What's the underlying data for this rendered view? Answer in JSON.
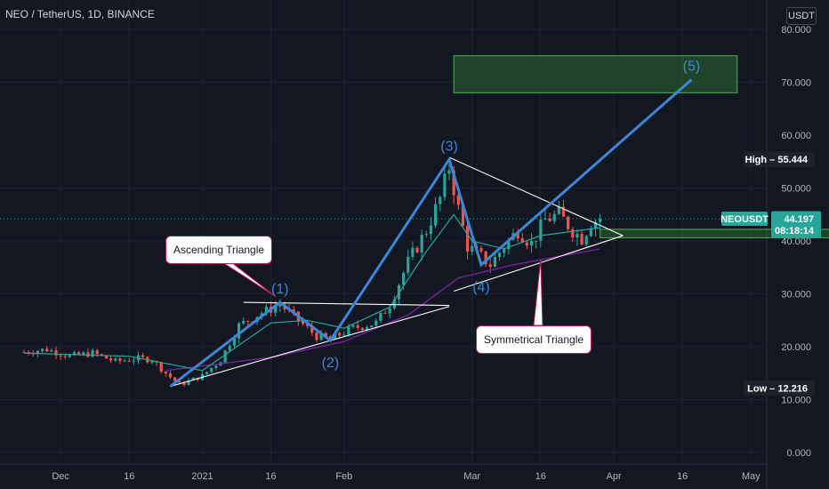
{
  "symbol_title": "NEO / TetherUS, 1D, BINANCE",
  "currency": "USDT",
  "colors": {
    "background": "#131722",
    "grid": "#1e2230",
    "up": "#26a69a",
    "down": "#ef5350",
    "wave": "#3d86d6",
    "ema_fast": "#26a69a",
    "ema_slow": "#7b1fa2",
    "zone_border": "#4caf50",
    "zone_fill": "#2e7d32",
    "high_label": "#1e222d",
    "last_price_label": "#26a69a",
    "callout_border": "#c2185b"
  },
  "chart_data": {
    "type": "candlestick",
    "ylim": [
      0,
      84
    ],
    "y_ticks": [
      0,
      10,
      20,
      30,
      40,
      50,
      60,
      70,
      80
    ],
    "y_tick_labels": [
      "0.000",
      "10.000",
      "20.000",
      "30.000",
      "40.000",
      "50.000",
      "60.000",
      "70.000",
      "80.000"
    ],
    "x_range": [
      "2020-11-23",
      "2021-05-25"
    ],
    "x_ticks": [
      {
        "date": "2020-12-01",
        "label": "Dec"
      },
      {
        "date": "2020-12-16",
        "label": "16"
      },
      {
        "date": "2021-01-01",
        "label": "2021"
      },
      {
        "date": "2021-01-16",
        "label": "16"
      },
      {
        "date": "2021-02-01",
        "label": "Feb"
      },
      {
        "date": "2021-03-01",
        "label": "Mar"
      },
      {
        "date": "2021-03-16",
        "label": "16"
      },
      {
        "date": "2021-04-01",
        "label": "Apr"
      },
      {
        "date": "2021-04-16",
        "label": "16"
      },
      {
        "date": "2021-05-01",
        "label": "May"
      }
    ],
    "grid": true,
    "price_path": [
      [
        "2020-11-23",
        19.0
      ],
      [
        "2020-11-28",
        19.5
      ],
      [
        "2020-12-03",
        18.2
      ],
      [
        "2020-12-08",
        18.8
      ],
      [
        "2020-12-13",
        17.2
      ],
      [
        "2020-12-18",
        17.8
      ],
      [
        "2020-12-21",
        17.6
      ],
      [
        "2020-12-24",
        15.0
      ],
      [
        "2020-12-27",
        12.8
      ],
      [
        "2021-01-01",
        14.5
      ],
      [
        "2021-01-05",
        17.5
      ],
      [
        "2021-01-09",
        24.0
      ],
      [
        "2021-01-13",
        26.0
      ],
      [
        "2021-01-18",
        28.0
      ],
      [
        "2021-01-22",
        25.0
      ],
      [
        "2021-01-26",
        22.0
      ],
      [
        "2021-01-29",
        21.5
      ],
      [
        "2021-02-03",
        23.5
      ],
      [
        "2021-02-08",
        24.5
      ],
      [
        "2021-02-11",
        28.0
      ],
      [
        "2021-02-15",
        36.0
      ],
      [
        "2021-02-19",
        42.0
      ],
      [
        "2021-02-22",
        48.0
      ],
      [
        "2021-02-24",
        54.0
      ],
      [
        "2021-02-26",
        46.0
      ],
      [
        "2021-02-28",
        39.0
      ],
      [
        "2021-03-03",
        37.0
      ],
      [
        "2021-03-05",
        35.5
      ],
      [
        "2021-03-08",
        39.0
      ],
      [
        "2021-03-11",
        42.0
      ],
      [
        "2021-03-14",
        39.5
      ],
      [
        "2021-03-17",
        44.0
      ],
      [
        "2021-03-20",
        45.0
      ],
      [
        "2021-03-23",
        42.0
      ],
      [
        "2021-03-25",
        40.5
      ],
      [
        "2021-03-27",
        43.5
      ],
      [
        "2021-03-29",
        44.197
      ]
    ],
    "ema_fast": [
      [
        "2020-11-23",
        18.8
      ],
      [
        "2020-12-16",
        18.2
      ],
      [
        "2021-01-01",
        15.5
      ],
      [
        "2021-01-16",
        24.5
      ],
      [
        "2021-01-24",
        25.0
      ],
      [
        "2021-02-01",
        23.5
      ],
      [
        "2021-02-11",
        27.5
      ],
      [
        "2021-02-19",
        38.0
      ],
      [
        "2021-02-25",
        45.0
      ],
      [
        "2021-03-01",
        40.0
      ],
      [
        "2021-03-08",
        38.5
      ],
      [
        "2021-03-16",
        41.0
      ],
      [
        "2021-03-29",
        42.5
      ]
    ],
    "ema_slow": [
      [
        "2020-12-24",
        15.5
      ],
      [
        "2021-01-16",
        18.0
      ],
      [
        "2021-02-01",
        21.0
      ],
      [
        "2021-02-15",
        26.0
      ],
      [
        "2021-02-26",
        33.0
      ],
      [
        "2021-03-10",
        35.5
      ],
      [
        "2021-03-29",
        38.5
      ]
    ],
    "wave_count": [
      {
        "date": "2020-12-25",
        "value": 12.5,
        "label": ""
      },
      {
        "date": "2021-01-18",
        "value": 28.4,
        "label": "(1)",
        "label_pos": "above"
      },
      {
        "date": "2021-01-29",
        "value": 21.2,
        "label": "(2)",
        "label_pos": "below"
      },
      {
        "date": "2021-02-24",
        "value": 55.4,
        "label": "(3)",
        "label_pos": "above"
      },
      {
        "date": "2021-03-03",
        "value": 35.5,
        "label": "(4)",
        "label_pos": "below"
      },
      {
        "date": "2021-04-18",
        "value": 70.5,
        "label": "(5)",
        "label_pos": "above"
      }
    ],
    "trendlines": [
      {
        "from": [
          "2021-01-10",
          28.4
        ],
        "to": [
          "2021-02-24",
          27.8
        ]
      },
      {
        "from": [
          "2020-12-25",
          12.5
        ],
        "to": [
          "2021-02-24",
          27.6
        ]
      },
      {
        "from": [
          "2021-02-24",
          55.8
        ],
        "to": [
          "2021-04-03",
          41.0
        ]
      },
      {
        "from": [
          "2021-02-25",
          30.5
        ],
        "to": [
          "2021-04-03",
          41.0
        ]
      }
    ],
    "zones": [
      {
        "from": [
          "2021-02-25",
          75.0
        ],
        "to": [
          "2021-04-28",
          68.0
        ]
      },
      {
        "from": [
          "2021-03-29",
          42.2
        ],
        "to": [
          "2021-05-19",
          40.6
        ]
      }
    ],
    "high": {
      "label": "High",
      "value": "55.444",
      "y": 55.444
    },
    "low": {
      "label": "Low",
      "value": "12.216",
      "y": 12.216
    },
    "last_price": {
      "symbol": "NEOUSDT",
      "value": "44.197",
      "countdown": "08:18:14",
      "y": 44.197
    },
    "annotations": [
      {
        "text": "Ascending Triangle",
        "pointer_to": [
          "2021-01-17",
          29.5
        ]
      },
      {
        "text": "Symmetrical Triangle",
        "pointer_to": [
          "2021-03-16",
          36.5
        ]
      }
    ]
  }
}
